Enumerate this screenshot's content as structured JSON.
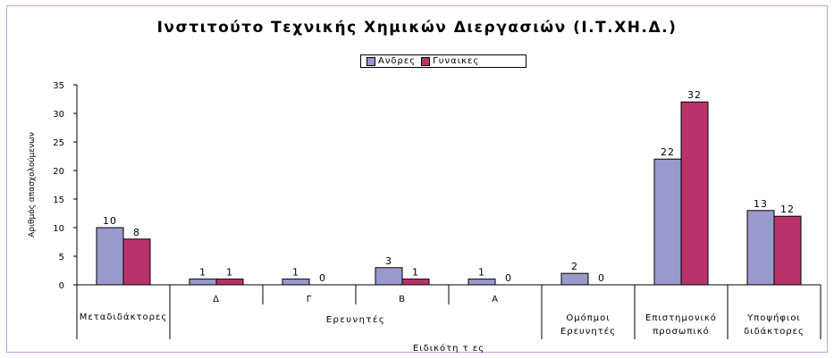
{
  "chart_data": {
    "type": "bar",
    "title": "Ινστιτούτο Τεχνικής Χημικών Διεργασιών (Ι.Τ.ΧΗ.Δ.)",
    "xlabel": "Ειδικότη τ ες",
    "ylabel": "Αριθμός απασχολούμενων",
    "ylim": [
      0,
      35
    ],
    "yticks": [
      0,
      5,
      10,
      15,
      20,
      25,
      30,
      35
    ],
    "grid": false,
    "legend_position": "top",
    "categories": [
      "Μεταδιδάκτορες",
      "Δ",
      "Γ",
      "Β",
      "Α",
      "Ομόπμοι Ερευνητές",
      "Επιστημονικό προσωπικό",
      "Υποψήφιοι διδάκτορες"
    ],
    "group_labels": [
      {
        "label": "Ερευνητές",
        "span": [
          1,
          4
        ]
      }
    ],
    "series": [
      {
        "name": "Ανδρες",
        "color": "#9999cc",
        "values": [
          10,
          1,
          1,
          3,
          1,
          2,
          22,
          13
        ]
      },
      {
        "name": "Γυναικες",
        "color": "#b8336a",
        "values": [
          8,
          1,
          0,
          1,
          0,
          0,
          32,
          12
        ]
      }
    ]
  }
}
